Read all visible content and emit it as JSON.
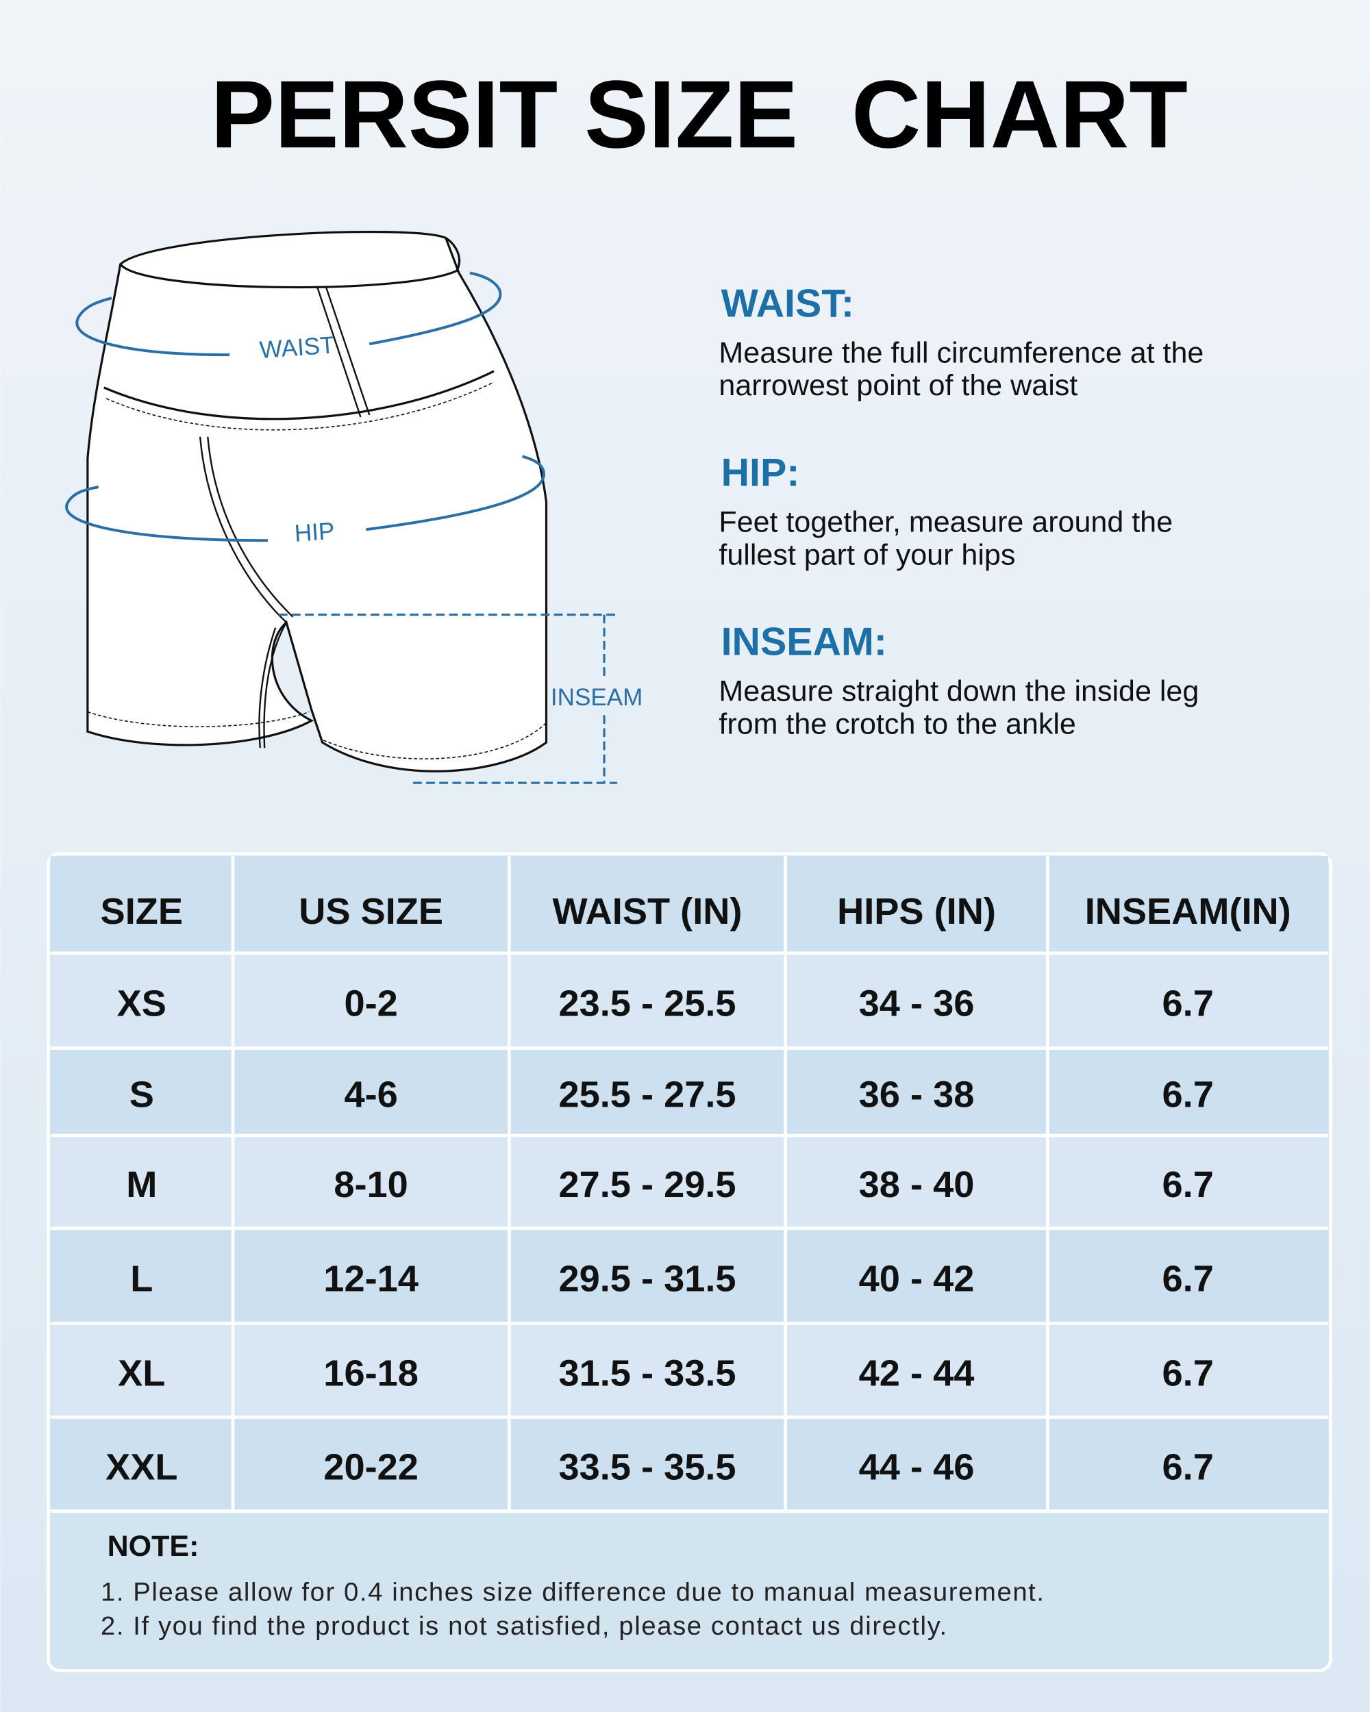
{
  "title": "PERSIT SIZE  CHART",
  "diagram": {
    "labels": [
      "WAIST",
      "HIP",
      "INSEAM"
    ]
  },
  "measurements": [
    {
      "name": "WAIST:",
      "lines": [
        "Measure the full circumference at the",
        "narrowest point of the waist"
      ]
    },
    {
      "name": "HIP:",
      "lines": [
        "Feet together, measure around the",
        "fullest part of your hips"
      ]
    },
    {
      "name": "INSEAM:",
      "lines": [
        "Measure straight down the inside leg",
        "from the crotch to the ankle"
      ]
    }
  ],
  "table": {
    "headers": [
      "SIZE",
      "US SIZE",
      "WAIST (IN)",
      "HIPS (IN)",
      "INSEAM(IN)"
    ],
    "rows": [
      [
        "XS",
        "0-2",
        "23.5 - 25.5",
        "34 - 36",
        "6.7"
      ],
      [
        "S",
        "4-6",
        "25.5 - 27.5",
        "36 - 38",
        "6.7"
      ],
      [
        "M",
        "8-10",
        "27.5 - 29.5",
        "38 - 40",
        "6.7"
      ],
      [
        "L",
        "12-14",
        "29.5 - 31.5",
        "40 - 42",
        "6.7"
      ],
      [
        "XL",
        "16-18",
        "31.5 - 33.5",
        "42 - 44",
        "6.7"
      ],
      [
        "XXL",
        "20-22",
        "33.5 - 35.5",
        "44 - 46",
        "6.7"
      ]
    ]
  },
  "note": {
    "title": "NOTE:",
    "lines": [
      "1. Please allow for 0.4 inches size difference due to manual measurement.",
      "2. If you find the product is not satisfied, please contact us directly."
    ]
  }
}
